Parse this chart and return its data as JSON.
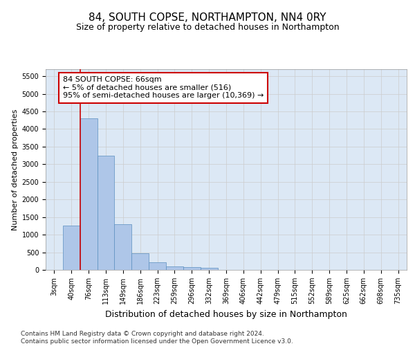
{
  "title": "84, SOUTH COPSE, NORTHAMPTON, NN4 0RY",
  "subtitle": "Size of property relative to detached houses in Northampton",
  "xlabel": "Distribution of detached houses by size in Northampton",
  "ylabel": "Number of detached properties",
  "categories": [
    "3sqm",
    "40sqm",
    "76sqm",
    "113sqm",
    "149sqm",
    "186sqm",
    "223sqm",
    "259sqm",
    "296sqm",
    "332sqm",
    "369sqm",
    "406sqm",
    "442sqm",
    "479sqm",
    "515sqm",
    "552sqm",
    "589sqm",
    "625sqm",
    "662sqm",
    "698sqm",
    "735sqm"
  ],
  "values": [
    0,
    1250,
    4300,
    3250,
    1300,
    480,
    220,
    100,
    70,
    60,
    0,
    0,
    0,
    0,
    0,
    0,
    0,
    0,
    0,
    0,
    0
  ],
  "bar_color": "#aec6e8",
  "bar_edge_color": "#5a8fc0",
  "vline_color": "#cc0000",
  "vline_x": 1.5,
  "annotation_text": "84 SOUTH COPSE: 66sqm\n← 5% of detached houses are smaller (516)\n95% of semi-detached houses are larger (10,369) →",
  "annotation_box_color": "#ffffff",
  "annotation_box_edge": "#cc0000",
  "ylim": [
    0,
    5700
  ],
  "yticks": [
    0,
    500,
    1000,
    1500,
    2000,
    2500,
    3000,
    3500,
    4000,
    4500,
    5000,
    5500
  ],
  "grid_color": "#cccccc",
  "bg_color": "#dce8f5",
  "footnote": "Contains HM Land Registry data © Crown copyright and database right 2024.\nContains public sector information licensed under the Open Government Licence v3.0.",
  "title_fontsize": 11,
  "subtitle_fontsize": 9,
  "xlabel_fontsize": 9,
  "ylabel_fontsize": 8,
  "tick_fontsize": 7,
  "annotation_fontsize": 8,
  "footnote_fontsize": 6.5
}
